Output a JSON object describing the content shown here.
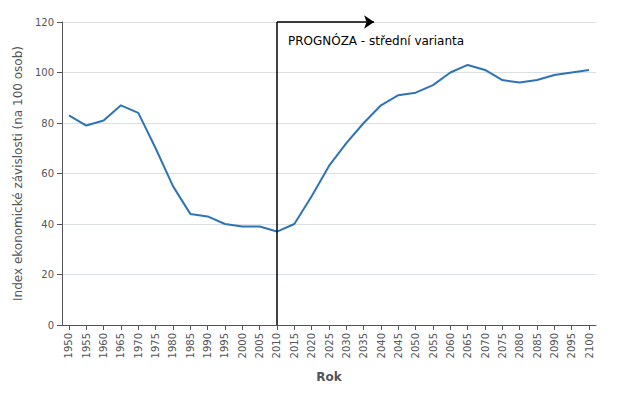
{
  "chart_data": {
    "type": "line",
    "x": [
      1950,
      1955,
      1960,
      1965,
      1970,
      1975,
      1980,
      1985,
      1990,
      1995,
      2000,
      2005,
      2010,
      2015,
      2020,
      2025,
      2030,
      2035,
      2040,
      2045,
      2050,
      2055,
      2060,
      2065,
      2070,
      2075,
      2080,
      2085,
      2090,
      2095,
      2100
    ],
    "values": [
      83,
      79,
      81,
      87,
      84,
      70,
      55,
      44,
      43,
      40,
      39,
      39,
      37,
      40,
      51,
      63,
      72,
      80,
      87,
      91,
      92,
      95,
      100,
      103,
      101,
      97,
      96,
      97,
      99,
      100,
      101
    ],
    "color": "#2E74B5",
    "xlabel": "Rok",
    "ylabel": "Index ekonomické závislosti (na 100 osob)",
    "xlim": [
      1948,
      2102
    ],
    "xticks": [
      1950,
      1955,
      1960,
      1965,
      1970,
      1975,
      1980,
      1985,
      1990,
      1995,
      2000,
      2005,
      2010,
      2015,
      2020,
      2025,
      2030,
      2035,
      2040,
      2045,
      2050,
      2055,
      2060,
      2065,
      2070,
      2075,
      2080,
      2085,
      2090,
      2095,
      2100
    ],
    "ylim": [
      0,
      120
    ],
    "yticks": [
      0,
      20,
      40,
      60,
      80,
      100,
      120
    ],
    "grid": true,
    "vline": {
      "x": 2010,
      "y": [
        0,
        120
      ]
    },
    "arrow": {
      "x": [
        2010,
        2038
      ],
      "y": 120
    },
    "annotation": {
      "text": "PROGNÓZA - střední varianta",
      "x": 2013,
      "y": 115
    }
  }
}
